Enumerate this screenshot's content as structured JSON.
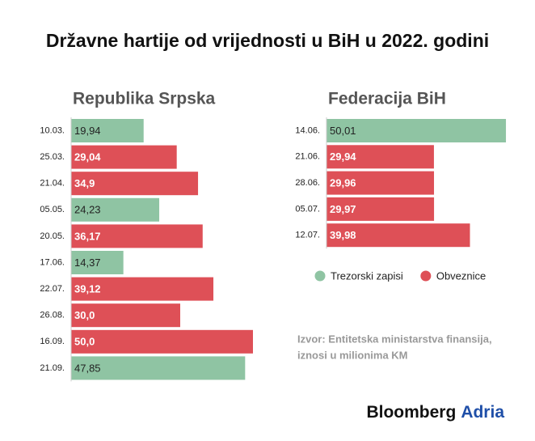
{
  "title": "Državne hartije od vrijednosti u BiH u 2022. godini",
  "legend": [
    {
      "name": "Trezorski zapisi",
      "color": "#8fc4a3"
    },
    {
      "name": "Obveznice",
      "color": "#de5057"
    }
  ],
  "source": [
    "Izvor: Entitetska ministarstva finansija,",
    "iznosi u milionima KM"
  ],
  "brand": [
    "Bloomberg",
    "Adria"
  ],
  "chart_data": [
    {
      "type": "bar",
      "title": "Republika Srpska",
      "categories": [
        "10.03.",
        "25.03.",
        "21.04.",
        "05.05.",
        "20.05.",
        "17.06.",
        "22.07.",
        "26.08.",
        "16.09.",
        "21.09."
      ],
      "values": [
        19.94,
        29.04,
        34.9,
        24.23,
        36.17,
        14.37,
        39.12,
        30.0,
        50.0,
        47.85
      ],
      "value_labels": [
        "19,94",
        "29,04",
        "34,9",
        "24,23",
        "36,17",
        "14,37",
        "39,12",
        "30,0",
        "50,0",
        "47,85"
      ],
      "colors": [
        "#8fc4a3",
        "#de5057",
        "#de5057",
        "#8fc4a3",
        "#de5057",
        "#8fc4a3",
        "#de5057",
        "#de5057",
        "#de5057",
        "#8fc4a3"
      ]
    },
    {
      "type": "bar",
      "title": "Federacija BiH",
      "categories": [
        "14.06.",
        "21.06.",
        "28.06.",
        "05.07.",
        "12.07."
      ],
      "values": [
        50.01,
        29.94,
        29.96,
        29.97,
        39.98
      ],
      "value_labels": [
        "50,01",
        "29,94",
        "29,96",
        "29,97",
        "39,98"
      ],
      "colors": [
        "#8fc4a3",
        "#de5057",
        "#de5057",
        "#de5057",
        "#de5057"
      ]
    }
  ]
}
